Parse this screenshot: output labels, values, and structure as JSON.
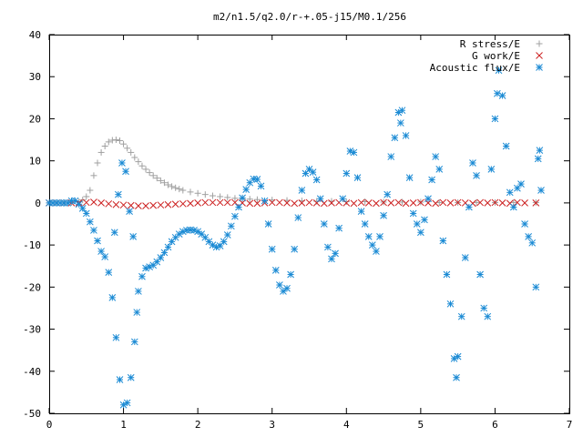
{
  "chart_data": {
    "type": "scatter",
    "title": "m2/n1.5/q2.0/r-+.05-j15/M0.1/256",
    "xlabel": "",
    "ylabel": "",
    "xlim": [
      0,
      7
    ],
    "ylim": [
      -50,
      40
    ],
    "x_ticks": [
      "0",
      "1",
      "2",
      "3",
      "4",
      "5",
      "6",
      "7"
    ],
    "y_ticks": [
      "40",
      "30",
      "20",
      "10",
      "0",
      "-10",
      "-20",
      "-30",
      "-40",
      "-50"
    ],
    "grid": false,
    "legend_position": "top-right",
    "series": [
      {
        "name": "R stress/E",
        "marker": "plus",
        "color": "#a0a0a0",
        "points": [
          [
            0.0,
            0.0
          ],
          [
            0.1,
            0.0
          ],
          [
            0.2,
            0.0
          ],
          [
            0.3,
            0.1
          ],
          [
            0.4,
            0.3
          ],
          [
            0.45,
            0.7
          ],
          [
            0.5,
            1.5
          ],
          [
            0.55,
            3.0
          ],
          [
            0.6,
            6.5
          ],
          [
            0.65,
            9.5
          ],
          [
            0.7,
            12.0
          ],
          [
            0.75,
            13.5
          ],
          [
            0.8,
            14.5
          ],
          [
            0.85,
            14.9
          ],
          [
            0.9,
            15.0
          ],
          [
            0.95,
            14.8
          ],
          [
            1.0,
            14.0
          ],
          [
            1.05,
            13.0
          ],
          [
            1.1,
            12.0
          ],
          [
            1.15,
            10.8
          ],
          [
            1.2,
            9.8
          ],
          [
            1.25,
            8.8
          ],
          [
            1.3,
            8.0
          ],
          [
            1.35,
            7.2
          ],
          [
            1.4,
            6.5
          ],
          [
            1.45,
            5.9
          ],
          [
            1.5,
            5.3
          ],
          [
            1.55,
            4.8
          ],
          [
            1.6,
            4.3
          ],
          [
            1.65,
            3.9
          ],
          [
            1.7,
            3.6
          ],
          [
            1.75,
            3.3
          ],
          [
            1.8,
            3.0
          ],
          [
            1.9,
            2.6
          ],
          [
            2.0,
            2.3
          ],
          [
            2.1,
            2.0
          ],
          [
            2.2,
            1.7
          ],
          [
            2.3,
            1.5
          ],
          [
            2.4,
            1.3
          ],
          [
            2.5,
            1.1
          ],
          [
            2.6,
            1.0
          ],
          [
            2.7,
            0.9
          ],
          [
            2.8,
            0.8
          ],
          [
            3.0,
            0.7
          ],
          [
            3.2,
            0.6
          ],
          [
            3.4,
            0.5
          ],
          [
            3.6,
            0.4
          ],
          [
            3.8,
            0.4
          ],
          [
            4.0,
            0.3
          ],
          [
            4.25,
            0.3
          ],
          [
            4.5,
            0.2
          ],
          [
            4.75,
            0.2
          ],
          [
            5.0,
            0.2
          ],
          [
            5.25,
            0.1
          ],
          [
            5.5,
            0.1
          ],
          [
            5.75,
            0.1
          ],
          [
            6.0,
            0.1
          ],
          [
            6.25,
            0.1
          ],
          [
            6.55,
            0.1
          ]
        ]
      },
      {
        "name": "G work/E",
        "marker": "cross",
        "color": "#cc2020",
        "points": [
          [
            0.0,
            0.0
          ],
          [
            0.1,
            0.0
          ],
          [
            0.2,
            0.0
          ],
          [
            0.3,
            0.0
          ],
          [
            0.4,
            0.0
          ],
          [
            0.5,
            0.1
          ],
          [
            0.6,
            0.2
          ],
          [
            0.7,
            0.0
          ],
          [
            0.8,
            -0.2
          ],
          [
            0.9,
            -0.4
          ],
          [
            1.0,
            -0.5
          ],
          [
            1.1,
            -0.6
          ],
          [
            1.2,
            -0.7
          ],
          [
            1.3,
            -0.7
          ],
          [
            1.4,
            -0.6
          ],
          [
            1.5,
            -0.5
          ],
          [
            1.6,
            -0.4
          ],
          [
            1.7,
            -0.3
          ],
          [
            1.8,
            -0.2
          ],
          [
            1.9,
            -0.1
          ],
          [
            2.0,
            0.0
          ],
          [
            2.1,
            0.1
          ],
          [
            2.2,
            0.1
          ],
          [
            2.3,
            0.1
          ],
          [
            2.4,
            0.1
          ],
          [
            2.5,
            0.1
          ],
          [
            2.6,
            0.0
          ],
          [
            2.7,
            -0.1
          ],
          [
            2.8,
            -0.1
          ],
          [
            2.9,
            0.0
          ],
          [
            3.0,
            0.1
          ],
          [
            3.1,
            0.1
          ],
          [
            3.2,
            0.0
          ],
          [
            3.3,
            -0.1
          ],
          [
            3.4,
            0.0
          ],
          [
            3.5,
            0.1
          ],
          [
            3.6,
            0.0
          ],
          [
            3.7,
            -0.1
          ],
          [
            3.8,
            0.0
          ],
          [
            3.9,
            0.1
          ],
          [
            4.0,
            0.0
          ],
          [
            4.1,
            -0.1
          ],
          [
            4.2,
            0.1
          ],
          [
            4.3,
            0.0
          ],
          [
            4.4,
            -0.1
          ],
          [
            4.5,
            0.1
          ],
          [
            4.6,
            0.0
          ],
          [
            4.7,
            0.1
          ],
          [
            4.8,
            -0.1
          ],
          [
            4.9,
            0.0
          ],
          [
            5.0,
            0.1
          ],
          [
            5.1,
            0.0
          ],
          [
            5.2,
            -0.1
          ],
          [
            5.3,
            0.1
          ],
          [
            5.4,
            0.0
          ],
          [
            5.5,
            0.1
          ],
          [
            5.6,
            0.0
          ],
          [
            5.7,
            -0.1
          ],
          [
            5.8,
            0.1
          ],
          [
            5.9,
            0.0
          ],
          [
            6.0,
            0.1
          ],
          [
            6.1,
            0.0
          ],
          [
            6.2,
            -0.1
          ],
          [
            6.3,
            0.1
          ],
          [
            6.4,
            0.0
          ],
          [
            6.55,
            0.0
          ]
        ]
      },
      {
        "name": "Acoustic flux/E",
        "marker": "star",
        "color": "#1a8ad4",
        "points": [
          [
            0.0,
            0.0
          ],
          [
            0.05,
            0.0
          ],
          [
            0.1,
            0.0
          ],
          [
            0.15,
            0.0
          ],
          [
            0.2,
            0.0
          ],
          [
            0.25,
            0.0
          ],
          [
            0.3,
            0.5
          ],
          [
            0.35,
            0.5
          ],
          [
            0.4,
            -0.3
          ],
          [
            0.45,
            -1.3
          ],
          [
            0.5,
            -2.5
          ],
          [
            0.55,
            -4.5
          ],
          [
            0.6,
            -6.5
          ],
          [
            0.65,
            -9.0
          ],
          [
            0.7,
            -11.5
          ],
          [
            0.75,
            -12.8
          ],
          [
            0.8,
            -16.5
          ],
          [
            0.85,
            -22.5
          ],
          [
            0.88,
            -7.0
          ],
          [
            0.9,
            -32.0
          ],
          [
            0.93,
            2.0
          ],
          [
            0.95,
            -42.0
          ],
          [
            0.98,
            9.5
          ],
          [
            1.0,
            -48.0
          ],
          [
            1.03,
            7.5
          ],
          [
            1.05,
            -47.5
          ],
          [
            1.08,
            -2.0
          ],
          [
            1.1,
            -41.5
          ],
          [
            1.13,
            -8.0
          ],
          [
            1.15,
            -33.0
          ],
          [
            1.18,
            -26.0
          ],
          [
            1.2,
            -21.0
          ],
          [
            1.25,
            -17.5
          ],
          [
            1.3,
            -15.5
          ],
          [
            1.35,
            -15.2
          ],
          [
            1.4,
            -14.8
          ],
          [
            1.45,
            -14.0
          ],
          [
            1.5,
            -13.0
          ],
          [
            1.55,
            -11.8
          ],
          [
            1.6,
            -10.5
          ],
          [
            1.65,
            -9.2
          ],
          [
            1.7,
            -8.2
          ],
          [
            1.75,
            -7.4
          ],
          [
            1.8,
            -6.8
          ],
          [
            1.85,
            -6.5
          ],
          [
            1.9,
            -6.4
          ],
          [
            1.95,
            -6.5
          ],
          [
            2.0,
            -6.8
          ],
          [
            2.05,
            -7.4
          ],
          [
            2.1,
            -8.2
          ],
          [
            2.15,
            -9.2
          ],
          [
            2.2,
            -10.0
          ],
          [
            2.25,
            -10.5
          ],
          [
            2.3,
            -10.2
          ],
          [
            2.35,
            -9.2
          ],
          [
            2.4,
            -7.6
          ],
          [
            2.45,
            -5.5
          ],
          [
            2.5,
            -3.2
          ],
          [
            2.55,
            -1.0
          ],
          [
            2.6,
            1.2
          ],
          [
            2.65,
            3.2
          ],
          [
            2.7,
            4.8
          ],
          [
            2.75,
            5.7
          ],
          [
            2.8,
            5.6
          ],
          [
            2.85,
            4.0
          ],
          [
            2.9,
            0.5
          ],
          [
            2.95,
            -5.0
          ],
          [
            3.0,
            -11.0
          ],
          [
            3.05,
            -16.0
          ],
          [
            3.1,
            -19.5
          ],
          [
            3.15,
            -21.0
          ],
          [
            3.2,
            -20.3
          ],
          [
            3.25,
            -17.0
          ],
          [
            3.3,
            -11.0
          ],
          [
            3.35,
            -3.5
          ],
          [
            3.4,
            3.0
          ],
          [
            3.45,
            7.0
          ],
          [
            3.5,
            8.0
          ],
          [
            3.55,
            7.3
          ],
          [
            3.6,
            5.5
          ],
          [
            3.65,
            1.0
          ],
          [
            3.7,
            -5.0
          ],
          [
            3.75,
            -10.5
          ],
          [
            3.8,
            -13.3
          ],
          [
            3.85,
            -12.0
          ],
          [
            3.9,
            -6.0
          ],
          [
            3.95,
            1.0
          ],
          [
            4.0,
            7.0
          ],
          [
            4.05,
            12.3
          ],
          [
            4.1,
            12.0
          ],
          [
            4.15,
            6.0
          ],
          [
            4.2,
            -2.0
          ],
          [
            4.25,
            -5.0
          ],
          [
            4.3,
            -8.0
          ],
          [
            4.35,
            -10.0
          ],
          [
            4.4,
            -11.5
          ],
          [
            4.45,
            -8.0
          ],
          [
            4.5,
            -3.0
          ],
          [
            4.55,
            2.0
          ],
          [
            4.6,
            11.0
          ],
          [
            4.65,
            15.5
          ],
          [
            4.7,
            21.5
          ],
          [
            4.73,
            19.0
          ],
          [
            4.75,
            22.0
          ],
          [
            4.8,
            16.0
          ],
          [
            4.85,
            6.0
          ],
          [
            4.9,
            -2.5
          ],
          [
            4.95,
            -5.0
          ],
          [
            5.0,
            -7.0
          ],
          [
            5.05,
            -4.0
          ],
          [
            5.1,
            1.0
          ],
          [
            5.15,
            5.5
          ],
          [
            5.2,
            11.0
          ],
          [
            5.25,
            8.0
          ],
          [
            5.3,
            -9.0
          ],
          [
            5.35,
            -17.0
          ],
          [
            5.4,
            -24.0
          ],
          [
            5.45,
            -37.0
          ],
          [
            5.48,
            -41.5
          ],
          [
            5.5,
            -36.5
          ],
          [
            5.55,
            -27.0
          ],
          [
            5.6,
            -13.0
          ],
          [
            5.65,
            -1.0
          ],
          [
            5.7,
            9.5
          ],
          [
            5.75,
            6.5
          ],
          [
            5.8,
            -17.0
          ],
          [
            5.85,
            -25.0
          ],
          [
            5.9,
            -27.0
          ],
          [
            5.95,
            8.0
          ],
          [
            6.0,
            20.0
          ],
          [
            6.03,
            26.0
          ],
          [
            6.05,
            31.5
          ],
          [
            6.1,
            25.5
          ],
          [
            6.15,
            13.5
          ],
          [
            6.2,
            2.5
          ],
          [
            6.25,
            -1.0
          ],
          [
            6.3,
            3.5
          ],
          [
            6.35,
            4.5
          ],
          [
            6.4,
            -5.0
          ],
          [
            6.45,
            -8.0
          ],
          [
            6.5,
            -9.5
          ],
          [
            6.55,
            -20.0
          ],
          [
            6.58,
            10.5
          ],
          [
            6.6,
            12.5
          ],
          [
            6.62,
            3.0
          ]
        ]
      }
    ]
  }
}
